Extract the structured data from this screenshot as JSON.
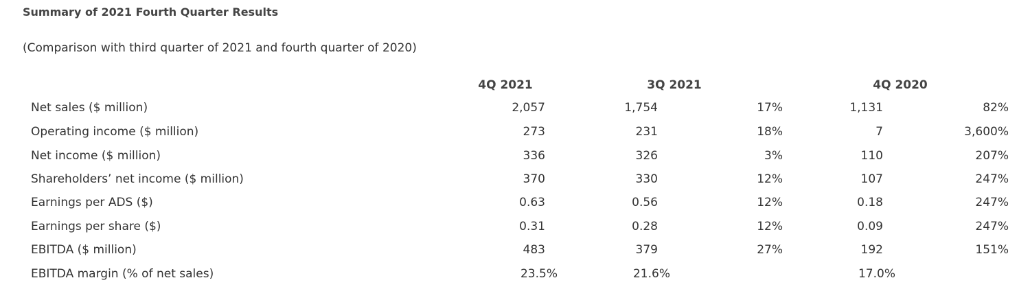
{
  "title": "Summary of 2021 Fourth Quarter Results",
  "subtitle": "(Comparison with third quarter of 2021 and fourth quarter of 2020)",
  "columns": {
    "q4_2021": "4Q 2021",
    "q3_2021": "3Q 2021",
    "q4_2020": "4Q 2020"
  },
  "rows": [
    {
      "label": "Net sales ($ million)",
      "q4_2021": "2,057",
      "q3_2021": "1,754",
      "chg_q3": "17%",
      "q4_2020": "1,131",
      "chg_q4": "82%"
    },
    {
      "label": "Operating income ($ million)",
      "q4_2021": "273",
      "q3_2021": "231",
      "chg_q3": "18%",
      "q4_2020": "7",
      "chg_q4": "3,600%"
    },
    {
      "label": "Net income ($ million)",
      "q4_2021": "336",
      "q3_2021": "326",
      "chg_q3": "3%",
      "q4_2020": "110",
      "chg_q4": "207%"
    },
    {
      "label": "Shareholders’ net income ($ million)",
      "q4_2021": "370",
      "q3_2021": "330",
      "chg_q3": "12%",
      "q4_2020": "107",
      "chg_q4": "247%"
    },
    {
      "label": "Earnings per ADS ($)",
      "q4_2021": "0.63",
      "q3_2021": "0.56",
      "chg_q3": "12%",
      "q4_2020": "0.18",
      "chg_q4": "247%"
    },
    {
      "label": "Earnings per share ($)",
      "q4_2021": "0.31",
      "q3_2021": "0.28",
      "chg_q3": "12%",
      "q4_2020": "0.09",
      "chg_q4": "247%"
    },
    {
      "label": "EBITDA ($ million)",
      "q4_2021": "483",
      "q3_2021": "379",
      "chg_q3": "27%",
      "q4_2020": "192",
      "chg_q4": "151%"
    },
    {
      "label": "EBITDA margin (% of net sales)",
      "q4_2021": "23.5%",
      "q3_2021": "21.6%",
      "chg_q3": "",
      "q4_2020": "17.0%",
      "chg_q4": ""
    }
  ]
}
